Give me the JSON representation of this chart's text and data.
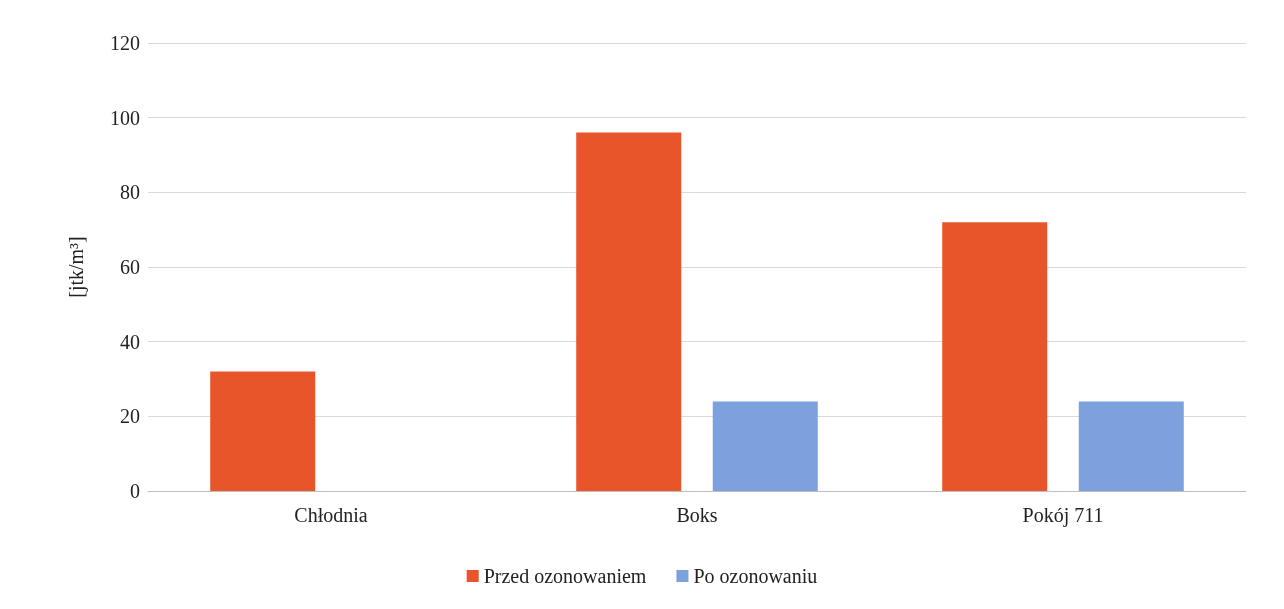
{
  "chart_data": {
    "type": "bar",
    "ylabel": "[jtk/m³]",
    "categories": [
      "Chłodnia",
      "Boks",
      "Pokój 711"
    ],
    "series": [
      {
        "name": "Przed ozonowaniem",
        "color": "#e9552b",
        "values": [
          32,
          96,
          72
        ]
      },
      {
        "name": "Po ozonowaniu",
        "color": "#7ca1dc",
        "values": [
          0,
          24,
          24
        ]
      }
    ],
    "ylim": [
      0,
      120
    ],
    "yticks": [
      0,
      20,
      40,
      60,
      80,
      100,
      120
    ],
    "grid": "y",
    "legend": "bottom"
  }
}
